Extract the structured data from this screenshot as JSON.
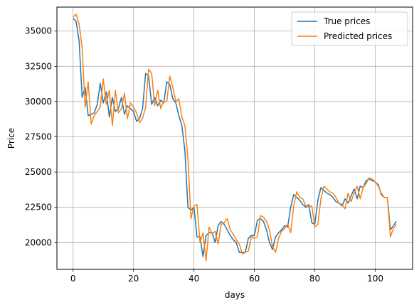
{
  "chart_data": {
    "type": "line",
    "title": "",
    "xlabel": "days",
    "ylabel": "Price",
    "xlim": [
      -5.35,
      112.35
    ],
    "ylim": [
      18100,
      36700
    ],
    "xticks": [
      0,
      20,
      40,
      60,
      80,
      100
    ],
    "yticks": [
      20000,
      22500,
      25000,
      27500,
      30000,
      32500,
      35000
    ],
    "grid": true,
    "legend": "top-right",
    "series": [
      {
        "name": "True prices",
        "color": "#1f77b4",
        "values": [
          35900,
          35700,
          34300,
          30300,
          31000,
          29000,
          29100,
          29200,
          29800,
          31300,
          29900,
          30700,
          28900,
          30300,
          29300,
          29500,
          30300,
          29100,
          29700,
          29500,
          29300,
          28600,
          28800,
          29500,
          32000,
          31800,
          29800,
          30300,
          29700,
          30100,
          29900,
          31400,
          31200,
          30200,
          29900,
          29000,
          28300,
          26500,
          22500,
          22300,
          22500,
          20400,
          20400,
          19000,
          20500,
          20700,
          20700,
          20000,
          21200,
          21500,
          21300,
          20900,
          20500,
          20200,
          20000,
          19300,
          19300,
          19300,
          20300,
          20500,
          20500,
          21600,
          21700,
          21500,
          20900,
          20000,
          19500,
          20400,
          20700,
          20900,
          21200,
          21100,
          22500,
          23400,
          23200,
          23000,
          22700,
          22500,
          22700,
          21400,
          21300,
          23000,
          23900,
          23700,
          23500,
          23400,
          23200,
          22900,
          22800,
          22600,
          23100,
          22800,
          23300,
          23800,
          23100,
          24000,
          23900,
          24400,
          24500,
          24400,
          24300,
          24100,
          23400,
          23200,
          23200,
          20900,
          21200,
          21500
        ],
        "values_label": "True prices"
      },
      {
        "name": "Predicted prices",
        "color": "#ff7f0e",
        "values": [
          36000,
          36200,
          35500,
          33800,
          29600,
          31400,
          28400,
          29000,
          29300,
          29600,
          31600,
          29800,
          30800,
          28300,
          30800,
          29200,
          29500,
          30600,
          28800,
          29900,
          29600,
          29200,
          28500,
          28800,
          29600,
          32300,
          32000,
          29700,
          30800,
          29500,
          30000,
          30000,
          31800,
          31000,
          30000,
          30200,
          28900,
          28300,
          26000,
          21700,
          22600,
          22700,
          20000,
          20700,
          18700,
          21100,
          20600,
          20800,
          19900,
          21300,
          21400,
          21700,
          20900,
          20600,
          20200,
          19900,
          19200,
          19300,
          19400,
          20400,
          20300,
          20400,
          21900,
          21800,
          21500,
          20900,
          19700,
          19300,
          20300,
          20800,
          21000,
          21300,
          20700,
          22600,
          23600,
          23200,
          23100,
          22600,
          22500,
          22600,
          21100,
          21300,
          23100,
          24000,
          23800,
          23600,
          23500,
          23200,
          22800,
          22700,
          22400,
          23500,
          22900,
          23500,
          24000,
          23100,
          23900,
          24200,
          24600,
          24500,
          24300,
          24000,
          23500,
          23200,
          23200,
          20400,
          21000,
          21300
        ]
      }
    ]
  }
}
